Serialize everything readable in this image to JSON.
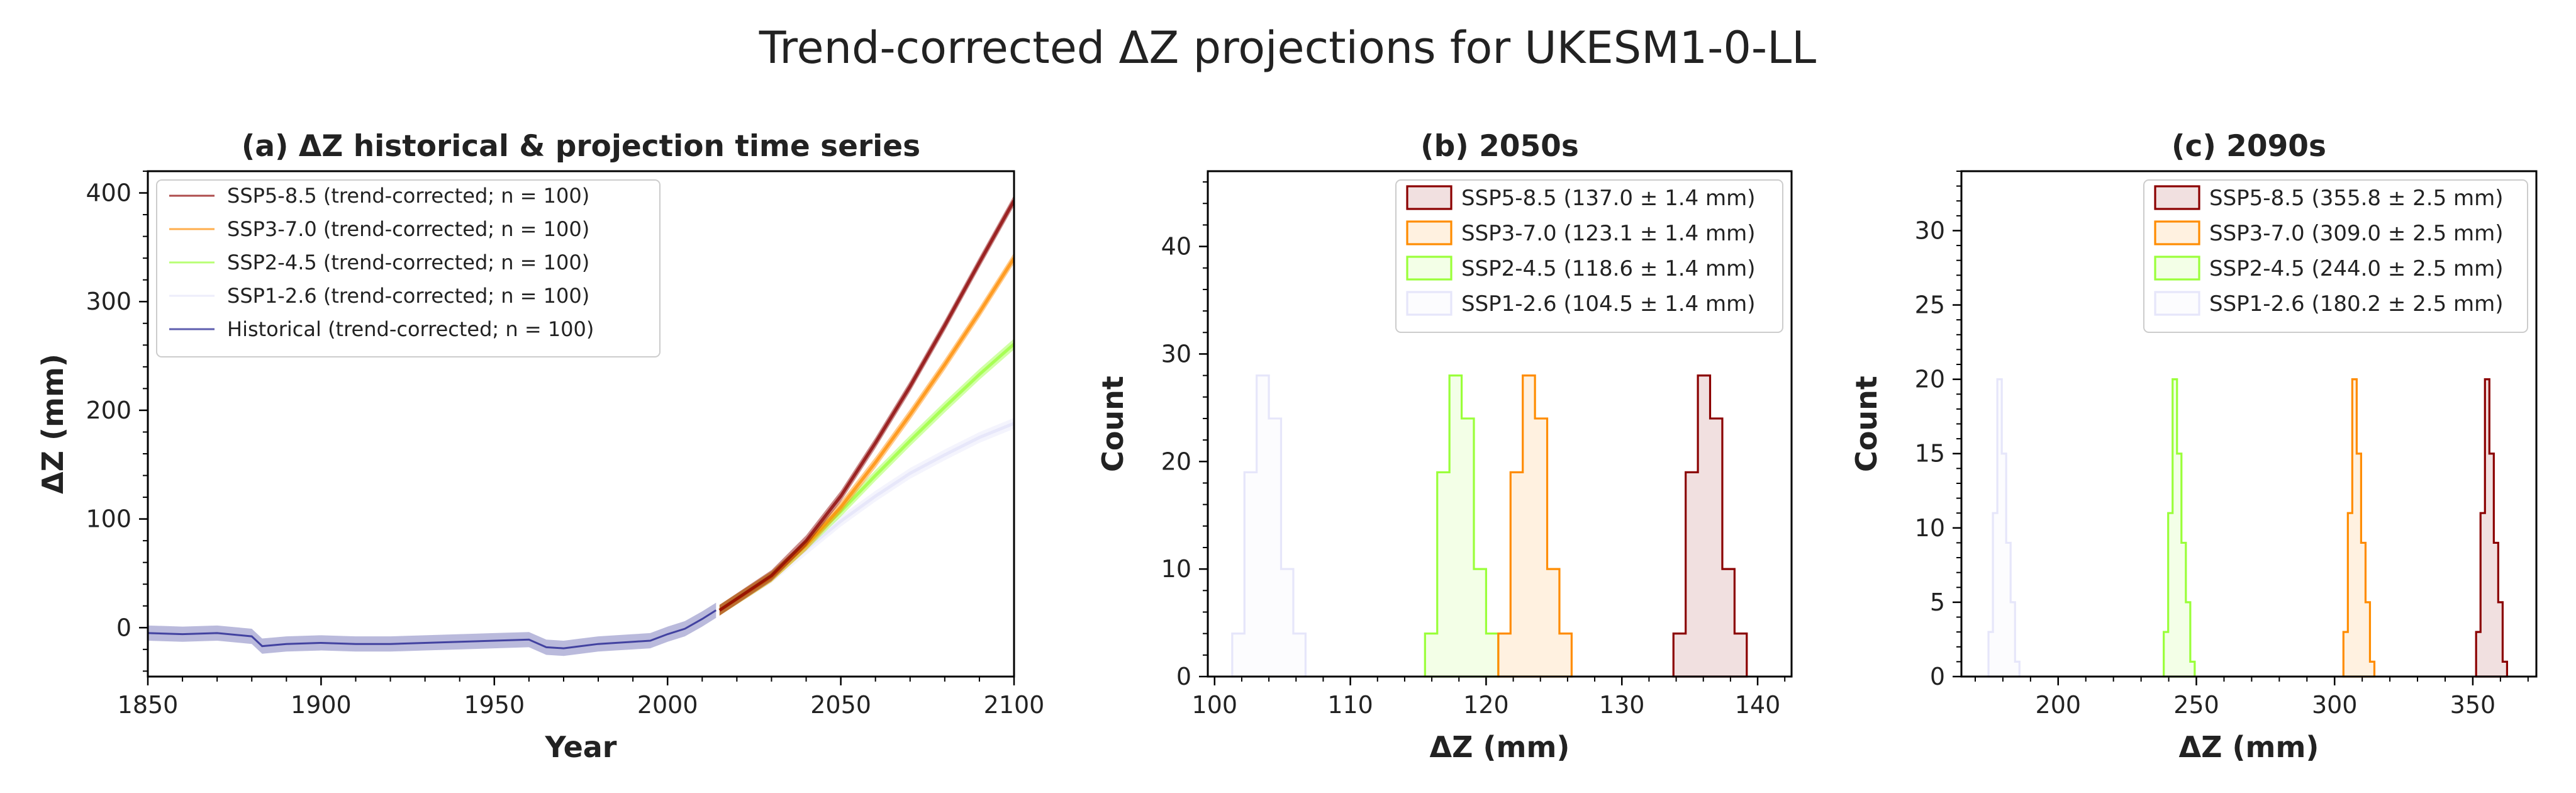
{
  "suptitle": "Trend-corrected ΔZ projections for UKESM1-0-LL",
  "colors": {
    "ssp585": "#8b0000",
    "ssp370": "#ff8c00",
    "ssp245": "#9aff3a",
    "ssp126": "#e6e6fa",
    "historical": "#1a1a8c"
  },
  "chart_data": [
    {
      "type": "line",
      "title": "(a) ΔZ historical & projection time series",
      "xlabel": "Year",
      "ylabel": "ΔZ (mm)",
      "xlim": [
        1850,
        2100
      ],
      "ylim": [
        -45,
        420
      ],
      "xticks": [
        1850,
        1900,
        1950,
        2000,
        2050,
        2100
      ],
      "yticks": [
        0,
        100,
        200,
        300,
        400
      ],
      "legend_location": "upper-left",
      "series": [
        {
          "key": "ssp585",
          "name": "SSP5-8.5 (trend-corrected; n = 100)",
          "x": [
            2015,
            2030,
            2040,
            2050,
            2060,
            2070,
            2080,
            2090,
            2100
          ],
          "y": [
            16,
            48,
            80,
            121,
            170,
            222,
            278,
            336,
            393
          ]
        },
        {
          "key": "ssp370",
          "name": "SSP3-7.0 (trend-corrected; n = 100)",
          "x": [
            2015,
            2030,
            2040,
            2050,
            2060,
            2070,
            2080,
            2090,
            2100
          ],
          "y": [
            16,
            47,
            76,
            111,
            152,
            196,
            242,
            290,
            340
          ]
        },
        {
          "key": "ssp245",
          "name": "SSP2-4.5 (trend-corrected; n = 100)",
          "x": [
            2015,
            2030,
            2040,
            2050,
            2060,
            2070,
            2080,
            2090,
            2100
          ],
          "y": [
            16,
            47,
            76,
            107,
            140,
            172,
            203,
            233,
            261
          ]
        },
        {
          "key": "ssp126",
          "name": "SSP1-2.6 (trend-corrected; n = 100)",
          "x": [
            2015,
            2030,
            2040,
            2050,
            2060,
            2070,
            2080,
            2090,
            2100
          ],
          "y": [
            16,
            46,
            72,
            98,
            121,
            142,
            159,
            175,
            188
          ]
        },
        {
          "key": "historical",
          "name": "Historical (trend-corrected; n = 100)",
          "x": [
            1850,
            1860,
            1870,
            1880,
            1883,
            1890,
            1900,
            1910,
            1920,
            1930,
            1940,
            1950,
            1960,
            1965,
            1970,
            1975,
            1980,
            1985,
            1990,
            1995,
            2000,
            2005,
            2010,
            2014
          ],
          "y": [
            -5,
            -6,
            -5,
            -8,
            -17,
            -15,
            -14,
            -15,
            -15,
            -14,
            -13,
            -12,
            -11,
            -18,
            -19,
            -17,
            -15,
            -14,
            -13,
            -12,
            -6,
            -1,
            8,
            16
          ]
        }
      ]
    },
    {
      "type": "histogram",
      "title": "(b) 2050s",
      "xlabel": "ΔZ (mm)",
      "ylabel": "Count",
      "xlim": [
        99.5,
        142.5
      ],
      "ylim": [
        0,
        47
      ],
      "xticks": [
        100,
        110,
        120,
        130,
        140
      ],
      "yticks": [
        0,
        10,
        20,
        30,
        40
      ],
      "legend_location": "upper-right",
      "series": [
        {
          "key": "ssp585",
          "name": "SSP5-8.5 (137.0 ± 1.4 mm)",
          "bin_start": 133.8,
          "bin_width": 0.9,
          "counts": [
            4,
            19,
            28,
            24,
            10,
            4
          ]
        },
        {
          "key": "ssp370",
          "name": "SSP3-7.0 (123.1 ± 1.4 mm)",
          "bin_start": 120.9,
          "bin_width": 0.9,
          "counts": [
            4,
            19,
            28,
            24,
            10,
            4
          ]
        },
        {
          "key": "ssp245",
          "name": "SSP2-4.5 (118.6 ± 1.4 mm)",
          "bin_start": 115.5,
          "bin_width": 0.9,
          "counts": [
            4,
            19,
            28,
            24,
            10,
            4
          ]
        },
        {
          "key": "ssp126",
          "name": "SSP1-2.6 (104.5 ± 1.4 mm)",
          "bin_start": 101.3,
          "bin_width": 0.9,
          "counts": [
            4,
            19,
            28,
            24,
            10,
            4
          ]
        }
      ]
    },
    {
      "type": "histogram",
      "title": "(c) 2090s",
      "xlabel": "ΔZ (mm)",
      "ylabel": "Count",
      "xlim": [
        165,
        373
      ],
      "ylim": [
        0,
        34
      ],
      "xticks": [
        200,
        250,
        300,
        350
      ],
      "yticks": [
        0,
        5,
        10,
        15,
        20,
        25,
        30
      ],
      "legend_location": "upper-right",
      "series": [
        {
          "key": "ssp585",
          "name": "SSP5-8.5 (355.8 ± 2.5 mm)",
          "bin_start": 351.2,
          "bin_width": 1.6,
          "counts": [
            3,
            11,
            20,
            15,
            9,
            5,
            1
          ]
        },
        {
          "key": "ssp370",
          "name": "SSP3-7.0 (309.0 ± 2.5 mm)",
          "bin_start": 303.2,
          "bin_width": 1.6,
          "counts": [
            3,
            11,
            20,
            15,
            9,
            5,
            1
          ]
        },
        {
          "key": "ssp245",
          "name": "SSP2-4.5 (244.0 ± 2.5 mm)",
          "bin_start": 238.2,
          "bin_width": 1.6,
          "counts": [
            3,
            11,
            20,
            15,
            9,
            5,
            1
          ]
        },
        {
          "key": "ssp126",
          "name": "SSP1-2.6 (180.2 ± 2.5 mm)",
          "bin_start": 174.8,
          "bin_width": 1.6,
          "counts": [
            3,
            11,
            20,
            15,
            9,
            5,
            1
          ]
        }
      ]
    }
  ]
}
